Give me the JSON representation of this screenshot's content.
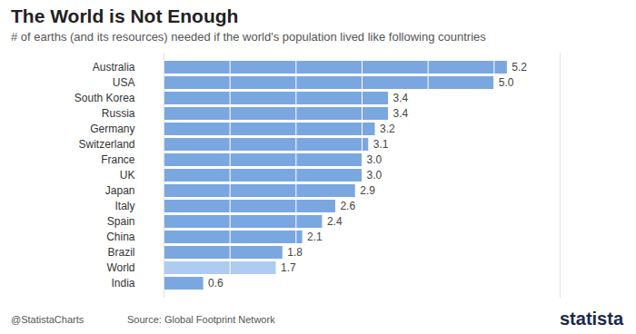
{
  "chart_data": {
    "type": "bar",
    "title": "The World is Not Enough",
    "subtitle": "# of earths (and its resources) needed if the world's population lived like following countries",
    "caption": "Source: Global Footprint Network",
    "annotations": [
      "@StatistaCharts",
      "statista"
    ],
    "orientation": "horizontal",
    "categories": [
      "Australia",
      "USA",
      "South Korea",
      "Russia",
      "Germany",
      "Switzerland",
      "France",
      "UK",
      "Japan",
      "Italy",
      "Spain",
      "China",
      "Brazil",
      "World",
      "India"
    ],
    "values": [
      5.2,
      5.0,
      3.4,
      3.4,
      3.2,
      3.1,
      3.0,
      3.0,
      2.9,
      2.6,
      2.4,
      2.1,
      1.8,
      1.7,
      0.6
    ],
    "value_labels": [
      "5.2",
      "5.0",
      "3.4",
      "3.4",
      "3.2",
      "3.1",
      "3.0",
      "3.0",
      "2.9",
      "2.6",
      "2.4",
      "2.1",
      "1.8",
      "1.7",
      "0.6"
    ],
    "colors": [
      "#7ba7e1",
      "#7ba7e1",
      "#7ba7e1",
      "#7ba7e1",
      "#7ba7e1",
      "#7ba7e1",
      "#7ba7e1",
      "#7ba7e1",
      "#7ba7e1",
      "#7ba7e1",
      "#7ba7e1",
      "#7ba7e1",
      "#7ba7e1",
      "#aecbf0",
      "#7ba7e1"
    ],
    "xlim": [
      0,
      6
    ],
    "xticks": [
      0,
      1,
      2,
      3,
      4,
      5,
      6
    ],
    "grid": true,
    "data_labels": true,
    "tick_labels": "y"
  }
}
